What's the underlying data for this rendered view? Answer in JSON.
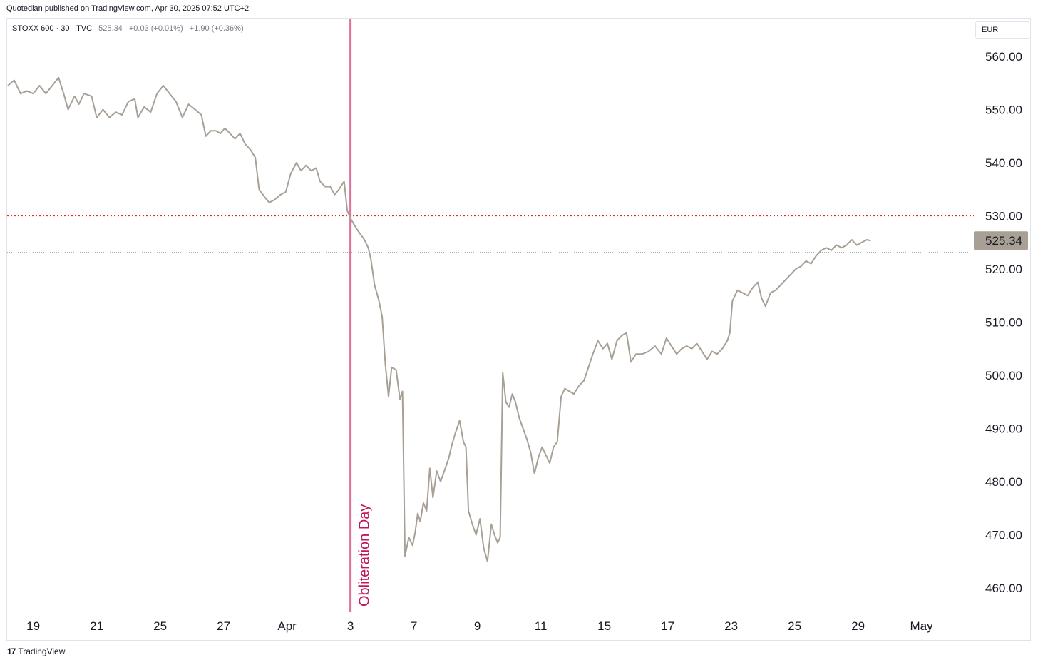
{
  "publisher_line": "Quotedian published on TradingView.com, Apr 30, 2025 07:52 UTC+2",
  "legend": {
    "symbol": "STOXX 600 · 30 · TVC",
    "last": "525.34",
    "change_1": "+0.03 (+0.01%)",
    "change_2": "+1.90 (+0.36%)"
  },
  "currency": "EUR",
  "brand": {
    "logo_glyph": "17",
    "label": "TradingView"
  },
  "colors": {
    "price_line": "#a89f95",
    "event_line": "#e0709a",
    "event_text": "#c2185b",
    "red_level": "#d32f2f",
    "gray_level": "#787b86",
    "last_badge_bg": "#a89f95"
  },
  "chart_data": {
    "type": "line",
    "title": "",
    "xlabel": "",
    "ylabel": "",
    "ylim": [
      455,
      565
    ],
    "y_ticks": [
      460,
      470,
      480,
      490,
      500,
      510,
      520,
      530,
      540,
      550,
      560
    ],
    "y_tick_labels": [
      "460.00",
      "470.00",
      "480.00",
      "490.00",
      "500.00",
      "510.00",
      "520.00",
      "530.00",
      "540.00",
      "550.00",
      "560.00"
    ],
    "x_ticks": [
      {
        "label": "19",
        "x": 0.4
      },
      {
        "label": "21",
        "x": 1.4
      },
      {
        "label": "25",
        "x": 2.4
      },
      {
        "label": "27",
        "x": 3.4
      },
      {
        "label": "Apr",
        "x": 4.4
      },
      {
        "label": "3",
        "x": 5.4
      },
      {
        "label": "7",
        "x": 6.4
      },
      {
        "label": "9",
        "x": 7.4
      },
      {
        "label": "11",
        "x": 8.4
      },
      {
        "label": "15",
        "x": 9.4
      },
      {
        "label": "17",
        "x": 10.4
      },
      {
        "label": "23",
        "x": 11.4
      },
      {
        "label": "25",
        "x": 12.4
      },
      {
        "label": "29",
        "x": 13.4
      },
      {
        "label": "May",
        "x": 14.4
      }
    ],
    "x_range": [
      0,
      15
    ],
    "series": [
      {
        "values": [
          [
            0.0,
            554.5
          ],
          [
            0.1,
            555.5
          ],
          [
            0.2,
            553.0
          ],
          [
            0.3,
            553.5
          ],
          [
            0.4,
            553.0
          ],
          [
            0.5,
            554.5
          ],
          [
            0.6,
            553.0
          ],
          [
            0.7,
            554.5
          ],
          [
            0.8,
            556.0
          ],
          [
            0.88,
            553.0
          ],
          [
            0.95,
            550.0
          ],
          [
            1.05,
            552.5
          ],
          [
            1.12,
            551.0
          ],
          [
            1.2,
            553.0
          ],
          [
            1.32,
            552.5
          ],
          [
            1.4,
            548.5
          ],
          [
            1.5,
            550.0
          ],
          [
            1.6,
            548.5
          ],
          [
            1.7,
            549.5
          ],
          [
            1.8,
            549.0
          ],
          [
            1.9,
            551.5
          ],
          [
            2.0,
            552.0
          ],
          [
            2.05,
            548.5
          ],
          [
            2.15,
            550.5
          ],
          [
            2.25,
            549.5
          ],
          [
            2.35,
            553.0
          ],
          [
            2.45,
            554.5
          ],
          [
            2.55,
            553.0
          ],
          [
            2.65,
            551.5
          ],
          [
            2.75,
            548.5
          ],
          [
            2.85,
            551.0
          ],
          [
            2.95,
            550.0
          ],
          [
            3.05,
            549.0
          ],
          [
            3.12,
            545.0
          ],
          [
            3.2,
            546.0
          ],
          [
            3.28,
            546.0
          ],
          [
            3.35,
            545.5
          ],
          [
            3.42,
            546.5
          ],
          [
            3.5,
            545.5
          ],
          [
            3.58,
            544.5
          ],
          [
            3.66,
            545.5
          ],
          [
            3.74,
            543.5
          ],
          [
            3.82,
            542.5
          ],
          [
            3.9,
            541.0
          ],
          [
            3.96,
            535.0
          ],
          [
            4.05,
            533.5
          ],
          [
            4.12,
            532.5
          ],
          [
            4.2,
            533.0
          ],
          [
            4.3,
            534.0
          ],
          [
            4.38,
            534.5
          ],
          [
            4.46,
            538.0
          ],
          [
            4.55,
            540.0
          ],
          [
            4.62,
            538.5
          ],
          [
            4.7,
            539.5
          ],
          [
            4.78,
            538.5
          ],
          [
            4.86,
            539.0
          ],
          [
            4.92,
            536.5
          ],
          [
            5.0,
            535.5
          ],
          [
            5.08,
            535.5
          ],
          [
            5.15,
            534.0
          ],
          [
            5.22,
            535.0
          ],
          [
            5.3,
            536.5
          ],
          [
            5.35,
            531.0
          ],
          [
            5.4,
            529.5
          ],
          [
            5.45,
            528.5
          ],
          [
            5.5,
            527.5
          ],
          [
            5.56,
            526.5
          ],
          [
            5.62,
            525.5
          ],
          [
            5.68,
            524.0
          ],
          [
            5.72,
            522.0
          ],
          [
            5.78,
            517.0
          ],
          [
            5.85,
            514.0
          ],
          [
            5.9,
            511.0
          ],
          [
            5.95,
            502.0
          ],
          [
            6.0,
            496.0
          ],
          [
            6.05,
            501.5
          ],
          [
            6.12,
            501.0
          ],
          [
            6.18,
            495.5
          ],
          [
            6.22,
            497.0
          ],
          [
            6.26,
            466.0
          ],
          [
            6.32,
            469.5
          ],
          [
            6.38,
            468.0
          ],
          [
            6.42,
            470.5
          ],
          [
            6.46,
            474.0
          ],
          [
            6.5,
            472.5
          ],
          [
            6.55,
            476.0
          ],
          [
            6.6,
            474.5
          ],
          [
            6.65,
            482.5
          ],
          [
            6.7,
            477.0
          ],
          [
            6.76,
            482.0
          ],
          [
            6.82,
            480.0
          ],
          [
            6.88,
            482.0
          ],
          [
            6.95,
            484.5
          ],
          [
            7.0,
            487.0
          ],
          [
            7.05,
            489.0
          ],
          [
            7.12,
            491.5
          ],
          [
            7.18,
            487.5
          ],
          [
            7.22,
            486.5
          ],
          [
            7.26,
            474.5
          ],
          [
            7.32,
            472.0
          ],
          [
            7.38,
            470.0
          ],
          [
            7.44,
            473.0
          ],
          [
            7.5,
            467.5
          ],
          [
            7.56,
            465.0
          ],
          [
            7.62,
            472.0
          ],
          [
            7.67,
            470.0
          ],
          [
            7.72,
            468.5
          ],
          [
            7.76,
            469.5
          ],
          [
            7.8,
            500.5
          ],
          [
            7.85,
            495.0
          ],
          [
            7.9,
            494.0
          ],
          [
            7.95,
            496.5
          ],
          [
            8.0,
            495.0
          ],
          [
            8.06,
            492.0
          ],
          [
            8.12,
            490.0
          ],
          [
            8.18,
            488.0
          ],
          [
            8.24,
            485.5
          ],
          [
            8.3,
            481.5
          ],
          [
            8.36,
            484.5
          ],
          [
            8.42,
            486.5
          ],
          [
            8.48,
            485.0
          ],
          [
            8.54,
            483.5
          ],
          [
            8.6,
            486.5
          ],
          [
            8.66,
            487.5
          ],
          [
            8.72,
            496.0
          ],
          [
            8.78,
            497.5
          ],
          [
            8.85,
            497.0
          ],
          [
            8.92,
            496.5
          ],
          [
            9.0,
            498.0
          ],
          [
            9.08,
            499.0
          ],
          [
            9.15,
            501.5
          ],
          [
            9.22,
            504.0
          ],
          [
            9.3,
            506.5
          ],
          [
            9.38,
            505.0
          ],
          [
            9.45,
            506.0
          ],
          [
            9.52,
            503.0
          ],
          [
            9.6,
            506.5
          ],
          [
            9.68,
            507.5
          ],
          [
            9.75,
            508.0
          ],
          [
            9.82,
            502.5
          ],
          [
            9.9,
            504.0
          ],
          [
            10.0,
            504.0
          ],
          [
            10.1,
            504.5
          ],
          [
            10.2,
            505.5
          ],
          [
            10.3,
            504.0
          ],
          [
            10.38,
            507.0
          ],
          [
            10.46,
            505.5
          ],
          [
            10.54,
            504.0
          ],
          [
            10.62,
            505.0
          ],
          [
            10.7,
            505.5
          ],
          [
            10.78,
            505.0
          ],
          [
            10.86,
            506.0
          ],
          [
            10.94,
            504.5
          ],
          [
            11.02,
            503.0
          ],
          [
            11.1,
            504.5
          ],
          [
            11.18,
            504.0
          ],
          [
            11.26,
            505.0
          ],
          [
            11.34,
            506.5
          ],
          [
            11.38,
            508.0
          ],
          [
            11.42,
            514.0
          ],
          [
            11.5,
            516.0
          ],
          [
            11.58,
            515.5
          ],
          [
            11.66,
            515.0
          ],
          [
            11.74,
            516.5
          ],
          [
            11.82,
            517.5
          ],
          [
            11.88,
            514.5
          ],
          [
            11.94,
            513.0
          ],
          [
            12.02,
            515.5
          ],
          [
            12.1,
            516.0
          ],
          [
            12.18,
            517.0
          ],
          [
            12.26,
            518.0
          ],
          [
            12.34,
            519.0
          ],
          [
            12.42,
            520.0
          ],
          [
            12.5,
            520.5
          ],
          [
            12.58,
            521.5
          ],
          [
            12.66,
            521.0
          ],
          [
            12.74,
            522.5
          ],
          [
            12.82,
            523.5
          ],
          [
            12.9,
            524.0
          ],
          [
            12.98,
            523.5
          ],
          [
            13.06,
            524.5
          ],
          [
            13.14,
            524.0
          ],
          [
            13.22,
            524.5
          ],
          [
            13.3,
            525.5
          ],
          [
            13.38,
            524.5
          ],
          [
            13.46,
            525.0
          ],
          [
            13.54,
            525.5
          ],
          [
            13.6,
            525.3
          ]
        ]
      }
    ],
    "reference_lines": [
      {
        "type": "horizontal",
        "value": 530.0,
        "style": "dotted",
        "color": "red"
      },
      {
        "type": "horizontal",
        "value": 523.1,
        "style": "dotted",
        "color": "gray"
      }
    ],
    "event_marker": {
      "x": 5.4,
      "label": "Obliteration  Day"
    },
    "last_value_badge": {
      "value": 525.34,
      "label": "525.34"
    },
    "grid": false,
    "legend_position": "top-left"
  }
}
